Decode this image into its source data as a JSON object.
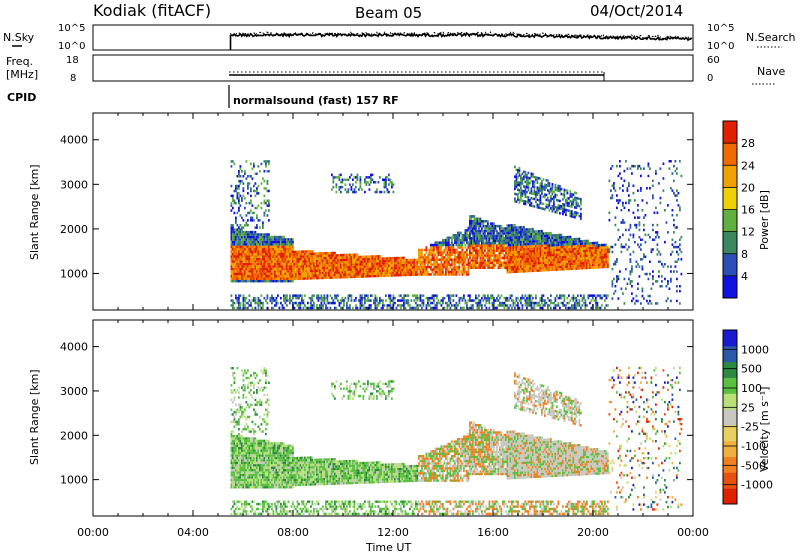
{
  "header": {
    "station": "Kodiak (fitACF)",
    "beam": "Beam 05",
    "date": "04/Oct/2014"
  },
  "strips": {
    "nsky": {
      "label": "N.Sky",
      "ticks": [
        "10^5",
        "10^0"
      ],
      "right_ticks": [
        "10^5",
        "10^0"
      ],
      "right_label": "N.Search"
    },
    "freq": {
      "label_line1": "Freq.",
      "label_line2": "[MHz]",
      "ticks": [
        "18",
        "8"
      ],
      "right_ticks": [
        "60",
        "0"
      ],
      "right_label": "Nave"
    },
    "cpid": {
      "label": "CPID",
      "text": "normalsound (fast) 157 RF"
    }
  },
  "colors": {
    "power": [
      "#1010e0",
      "#2a50b8",
      "#3a8860",
      "#60b040",
      "#f0d000",
      "#f0a000",
      "#f06a00",
      "#e02000"
    ],
    "velocity": [
      "#1a1ad0",
      "#2a5aa8",
      "#2a8a40",
      "#5ac040",
      "#b8e078",
      "#c8c8c0",
      "#e8d060",
      "#f0b040",
      "#f08020",
      "#e85010",
      "#e02000"
    ],
    "frame": "#000000",
    "background": "#ffffff"
  },
  "chart_data": [
    {
      "type": "heatmap",
      "panel": "power",
      "x": [
        "00:00",
        "04:00",
        "08:00",
        "12:00",
        "16:00",
        "20:00",
        "00:00"
      ],
      "xlim_hours": [
        0,
        24
      ],
      "xlabel": "Time UT",
      "ylabel": "Slant Range [km]",
      "yticks": [
        1000,
        2000,
        3000,
        4000
      ],
      "ylim": [
        180,
        4600
      ],
      "colorbar": {
        "label": "Power [dB]",
        "ticks": [
          "4",
          "8",
          "12",
          "16",
          "20",
          "24",
          "28"
        ],
        "range": [
          0,
          30
        ]
      },
      "series": [
        {
          "start_hour": 5.5,
          "end_hour": 20.6,
          "min_km": 180,
          "max_km": 3500,
          "note_values_db": [
            4,
            8,
            12,
            16,
            20,
            24,
            28
          ]
        }
      ]
    },
    {
      "type": "heatmap",
      "panel": "velocity",
      "x": [
        "00:00",
        "04:00",
        "08:00",
        "12:00",
        "16:00",
        "20:00",
        "00:00"
      ],
      "xlim_hours": [
        0,
        24
      ],
      "xlabel": "Time UT",
      "ylabel": "Slant Range [km]",
      "yticks": [
        1000,
        2000,
        3000,
        4000
      ],
      "ylim": [
        180,
        4600
      ],
      "colorbar": {
        "label": "Velocity [m s⁻¹]",
        "ticks": [
          "1000",
          "500",
          "100",
          "25",
          "-25",
          "-100",
          "-500",
          "-1000"
        ],
        "range": [
          -1000,
          1000
        ]
      },
      "series": [
        {
          "start_hour": 5.5,
          "end_hour": 20.6,
          "min_km": 180,
          "max_km": 3500,
          "note_values_ms": [
            1000,
            500,
            100,
            25,
            -25,
            -100,
            -500,
            -1000
          ]
        }
      ]
    }
  ],
  "xtick_labels": [
    "00:00",
    "04:00",
    "08:00",
    "12:00",
    "16:00",
    "20:00",
    "00:00"
  ],
  "xlabel": "Time UT",
  "ylabel": "Slant Range [km]",
  "ytick_labels": [
    "1000",
    "2000",
    "3000",
    "4000"
  ],
  "power_cbar": {
    "label": "Power [dB]",
    "ticks": [
      "28",
      "24",
      "20",
      "16",
      "12",
      "8",
      "4"
    ]
  },
  "vel_cbar": {
    "label": "Velocity [m s⁻¹]",
    "ticks": [
      "1000",
      "500",
      "100",
      "25",
      "-25",
      "-100",
      "-500",
      "-1000"
    ]
  }
}
